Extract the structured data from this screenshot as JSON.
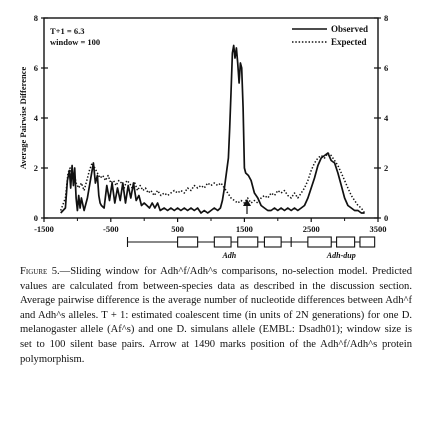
{
  "chart_data": {
    "type": "line",
    "title": "",
    "ylabel": "Average Pairwise Difference",
    "xlabel": "",
    "xlim": [
      -1500,
      3500
    ],
    "ylim": [
      0,
      8
    ],
    "x_ticks": [
      "-1500",
      "-500",
      "500",
      "1500",
      "2500",
      "3500"
    ],
    "y_ticks_left": [
      "0",
      "2",
      "4",
      "6",
      "8"
    ],
    "y_ticks_right": [
      "0",
      "2",
      "4",
      "6",
      "8"
    ],
    "annotation": [
      "T+1 = 6.3",
      "window = 100"
    ],
    "legend": {
      "position": "top-right",
      "entries": [
        {
          "label": "Observed",
          "style": "solid"
        },
        {
          "label": "Expected",
          "style": "dotted"
        }
      ]
    },
    "marker_x": 1490,
    "series": [
      {
        "name": "Observed",
        "style": "solid",
        "points": [
          [
            -1250,
            0.2
          ],
          [
            -1180,
            0.4
          ],
          [
            -1150,
            1.5
          ],
          [
            -1120,
            1.9
          ],
          [
            -1100,
            1.2
          ],
          [
            -1080,
            2.1
          ],
          [
            -1060,
            1.3
          ],
          [
            -1040,
            2.0
          ],
          [
            -1020,
            0.8
          ],
          [
            -1000,
            0.3
          ],
          [
            -980,
            0.9
          ],
          [
            -960,
            0.4
          ],
          [
            -940,
            0.8
          ],
          [
            -900,
            0.3
          ],
          [
            -850,
            0.8
          ],
          [
            -800,
            1.6
          ],
          [
            -760,
            2.2
          ],
          [
            -730,
            1.4
          ],
          [
            -700,
            1.7
          ],
          [
            -680,
            0.9
          ],
          [
            -660,
            0.6
          ],
          [
            -640,
            0.5
          ],
          [
            -600,
            0.4
          ],
          [
            -560,
            1.3
          ],
          [
            -520,
            0.7
          ],
          [
            -480,
            1.4
          ],
          [
            -440,
            0.6
          ],
          [
            -400,
            1.2
          ],
          [
            -360,
            0.7
          ],
          [
            -320,
            1.4
          ],
          [
            -280,
            0.6
          ],
          [
            -240,
            1.3
          ],
          [
            -200,
            0.8
          ],
          [
            -160,
            1.4
          ],
          [
            -120,
            0.7
          ],
          [
            -80,
            0.9
          ],
          [
            -40,
            0.5
          ],
          [
            0,
            0.6
          ],
          [
            40,
            0.5
          ],
          [
            80,
            0.4
          ],
          [
            120,
            0.6
          ],
          [
            160,
            0.4
          ],
          [
            200,
            0.6
          ],
          [
            240,
            0.3
          ],
          [
            300,
            0.4
          ],
          [
            350,
            0.3
          ],
          [
            400,
            0.4
          ],
          [
            450,
            0.3
          ],
          [
            500,
            0.4
          ],
          [
            550,
            0.3
          ],
          [
            600,
            0.4
          ],
          [
            650,
            0.3
          ],
          [
            700,
            0.4
          ],
          [
            750,
            0.3
          ],
          [
            800,
            0.4
          ],
          [
            850,
            0.2
          ],
          [
            900,
            0.3
          ],
          [
            950,
            0.2
          ],
          [
            1000,
            0.3
          ],
          [
            1050,
            0.4
          ],
          [
            1100,
            0.3
          ],
          [
            1140,
            0.4
          ],
          [
            1170,
            0.7
          ],
          [
            1200,
            1.2
          ],
          [
            1230,
            1.8
          ],
          [
            1260,
            2.4
          ],
          [
            1280,
            3.6
          ],
          [
            1300,
            5.0
          ],
          [
            1320,
            6.6
          ],
          [
            1340,
            6.9
          ],
          [
            1360,
            6.4
          ],
          [
            1380,
            6.8
          ],
          [
            1400,
            6.2
          ],
          [
            1420,
            5.4
          ],
          [
            1440,
            6.2
          ],
          [
            1460,
            6.0
          ],
          [
            1480,
            4.4
          ],
          [
            1500,
            2.0
          ],
          [
            1520,
            1.8
          ],
          [
            1560,
            1.7
          ],
          [
            1600,
            1.5
          ],
          [
            1650,
            1.0
          ],
          [
            1700,
            0.8
          ],
          [
            1750,
            0.5
          ],
          [
            1800,
            0.4
          ],
          [
            1850,
            0.3
          ],
          [
            1900,
            0.3
          ],
          [
            1950,
            0.4
          ],
          [
            2000,
            0.3
          ],
          [
            2050,
            0.4
          ],
          [
            2100,
            0.3
          ],
          [
            2150,
            0.4
          ],
          [
            2200,
            0.3
          ],
          [
            2250,
            0.4
          ],
          [
            2300,
            0.3
          ],
          [
            2350,
            0.4
          ],
          [
            2400,
            0.5
          ],
          [
            2450,
            0.8
          ],
          [
            2500,
            1.2
          ],
          [
            2550,
            1.6
          ],
          [
            2600,
            2.1
          ],
          [
            2650,
            2.4
          ],
          [
            2700,
            2.5
          ],
          [
            2750,
            2.6
          ],
          [
            2800,
            2.3
          ],
          [
            2850,
            2.2
          ],
          [
            2900,
            1.8
          ],
          [
            2950,
            1.3
          ],
          [
            3000,
            0.8
          ],
          [
            3050,
            0.5
          ],
          [
            3100,
            0.4
          ],
          [
            3150,
            0.3
          ],
          [
            3200,
            0.3
          ],
          [
            3250,
            0.2
          ],
          [
            3300,
            0.2
          ]
        ]
      },
      {
        "name": "Expected",
        "style": "dotted",
        "points": [
          [
            -1250,
            0.3
          ],
          [
            -1180,
            0.8
          ],
          [
            -1140,
            1.8
          ],
          [
            -1110,
            2.0
          ],
          [
            -1080,
            1.6
          ],
          [
            -1050,
            1.8
          ],
          [
            -1020,
            1.4
          ],
          [
            -980,
            1.2
          ],
          [
            -940,
            1.4
          ],
          [
            -900,
            1.1
          ],
          [
            -860,
            1.5
          ],
          [
            -820,
            1.9
          ],
          [
            -780,
            2.2
          ],
          [
            -740,
            2.0
          ],
          [
            -700,
            1.8
          ],
          [
            -660,
            1.6
          ],
          [
            -620,
            1.7
          ],
          [
            -580,
            1.5
          ],
          [
            -540,
            1.7
          ],
          [
            -500,
            1.4
          ],
          [
            -460,
            1.5
          ],
          [
            -420,
            1.3
          ],
          [
            -380,
            1.5
          ],
          [
            -340,
            1.4
          ],
          [
            -300,
            1.2
          ],
          [
            -260,
            1.5
          ],
          [
            -220,
            1.4
          ],
          [
            -180,
            1.2
          ],
          [
            -140,
            1.4
          ],
          [
            -100,
            1.1
          ],
          [
            -60,
            1.3
          ],
          [
            -20,
            1.1
          ],
          [
            20,
            1.2
          ],
          [
            60,
            1.0
          ],
          [
            100,
            1.1
          ],
          [
            150,
            0.9
          ],
          [
            200,
            1.1
          ],
          [
            250,
            0.9
          ],
          [
            300,
            1.0
          ],
          [
            350,
            0.9
          ],
          [
            400,
            1.0
          ],
          [
            450,
            1.1
          ],
          [
            500,
            1.0
          ],
          [
            550,
            1.1
          ],
          [
            600,
            1.0
          ],
          [
            650,
            1.2
          ],
          [
            700,
            1.1
          ],
          [
            750,
            1.3
          ],
          [
            800,
            1.2
          ],
          [
            850,
            1.3
          ],
          [
            900,
            1.2
          ],
          [
            950,
            1.4
          ],
          [
            1000,
            1.3
          ],
          [
            1050,
            1.4
          ],
          [
            1100,
            1.3
          ],
          [
            1150,
            1.4
          ],
          [
            1200,
            1.2
          ],
          [
            1250,
            1.0
          ],
          [
            1300,
            0.8
          ],
          [
            1350,
            0.7
          ],
          [
            1400,
            0.6
          ],
          [
            1450,
            0.7
          ],
          [
            1500,
            0.6
          ],
          [
            1550,
            0.8
          ],
          [
            1600,
            0.6
          ],
          [
            1650,
            0.7
          ],
          [
            1700,
            0.6
          ],
          [
            1750,
            0.8
          ],
          [
            1800,
            0.9
          ],
          [
            1850,
            0.8
          ],
          [
            1900,
            1.0
          ],
          [
            1950,
            0.9
          ],
          [
            2000,
            1.1
          ],
          [
            2050,
            1.0
          ],
          [
            2100,
            1.1
          ],
          [
            2150,
            0.9
          ],
          [
            2200,
            0.8
          ],
          [
            2250,
            1.0
          ],
          [
            2300,
            0.8
          ],
          [
            2350,
            1.0
          ],
          [
            2400,
            1.2
          ],
          [
            2450,
            1.5
          ],
          [
            2500,
            1.9
          ],
          [
            2550,
            2.2
          ],
          [
            2600,
            2.4
          ],
          [
            2650,
            2.5
          ],
          [
            2700,
            2.4
          ],
          [
            2750,
            2.6
          ],
          [
            2800,
            2.5
          ],
          [
            2850,
            2.3
          ],
          [
            2900,
            2.1
          ],
          [
            2950,
            1.8
          ],
          [
            3000,
            1.5
          ],
          [
            3050,
            1.2
          ],
          [
            3100,
            0.9
          ],
          [
            3150,
            0.7
          ],
          [
            3200,
            0.5
          ],
          [
            3250,
            0.4
          ],
          [
            3300,
            0.2
          ]
        ]
      }
    ]
  },
  "genes": [
    {
      "label": "Adh",
      "axis_start": -250,
      "axis_end": 2600,
      "exons": [
        [
          500,
          800
        ],
        [
          1050,
          1300
        ],
        [
          1400,
          1700
        ],
        [
          1800,
          2050
        ]
      ]
    },
    {
      "label": "Adh-dup",
      "axis_start": 2200,
      "axis_end": 3450,
      "exons": [
        [
          2450,
          2800
        ],
        [
          2880,
          3150
        ],
        [
          3230,
          3450
        ]
      ]
    }
  ],
  "caption": {
    "figure_label": "Figure 5.",
    "text": "—Sliding window for Adh^f/Adh^s comparisons, no-selection model. Predicted values are calculated from between-species data as described in the discussion section. Average pairwise difference is the average number of nucleotide differences between Adh^f and Adh^s alleles. T + 1: estimated coalescent time (in units of 2N generations) for one D. melanogaster allele (Af^s) and one D. simulans allele (EMBL: Dsadh01); window size is set to 100 silent base pairs. Arrow at 1490 marks position of the Adh^f/Adh^s protein polymorphism."
  }
}
